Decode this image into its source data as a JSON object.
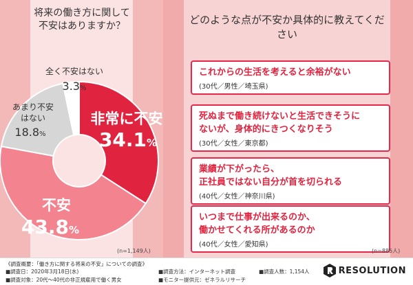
{
  "left_question": [
    "将来の働き方に関して",
    "不安はありますか？"
  ],
  "right_question": "どのような点が不安か具体的に教えてください",
  "chart_data": {
    "type": "pie",
    "slices": [
      {
        "label": "非常に不安",
        "value": 34.1,
        "display_value": "34.1",
        "unit": "%",
        "color": "#e0233f"
      },
      {
        "label": "不安",
        "value": 43.8,
        "display_value": "43.8",
        "unit": "%",
        "color": "#f2838f"
      },
      {
        "label": "あまり不安\nはない",
        "value": 18.8,
        "display_value": "18.8",
        "unit": "%",
        "color": "#d6d6d6"
      },
      {
        "label": "全く不安はない",
        "value": 3.3,
        "display_value": "3.3",
        "unit": "%",
        "color": "#ffffff"
      }
    ],
    "donut": true,
    "start_angle_deg": 0
  },
  "n_left": "(n=1,149人)",
  "n_right": "(n=885人)",
  "comments": [
    {
      "text": [
        "これからの生活を考えると余裕がない"
      ],
      "author": "(30代／男性／埼玉県)"
    },
    {
      "text": [
        "死ぬまで働き続けないと生活できそうに",
        "ないが、身体的にきつくなりそう"
      ],
      "author": "(30代／女性／東京都)"
    },
    {
      "text": [
        "業績が下がったら、",
        "正社員ではない自分が首を切られる"
      ],
      "author": "(40代／女性／神奈川県)"
    },
    {
      "text": [
        "いつまで仕事が出来るのか、",
        "働かせてくれる所があるのか"
      ],
      "author": "(40代／女性／愛知県)"
    }
  ],
  "footer": {
    "overview": "《調査概要：「働き方に関する将来の不安」についての調査》",
    "date": "■調査日：2020年3月18日(水)",
    "method": "■調査方法：インターネット調査",
    "count": "■調査人数：1,154人",
    "target": "■調査対象：20代～40代の非正規雇用で働く男女",
    "provider": "■モニター提供元：ゼネラルリサーチ",
    "logo_text": "RESOLUTION"
  }
}
